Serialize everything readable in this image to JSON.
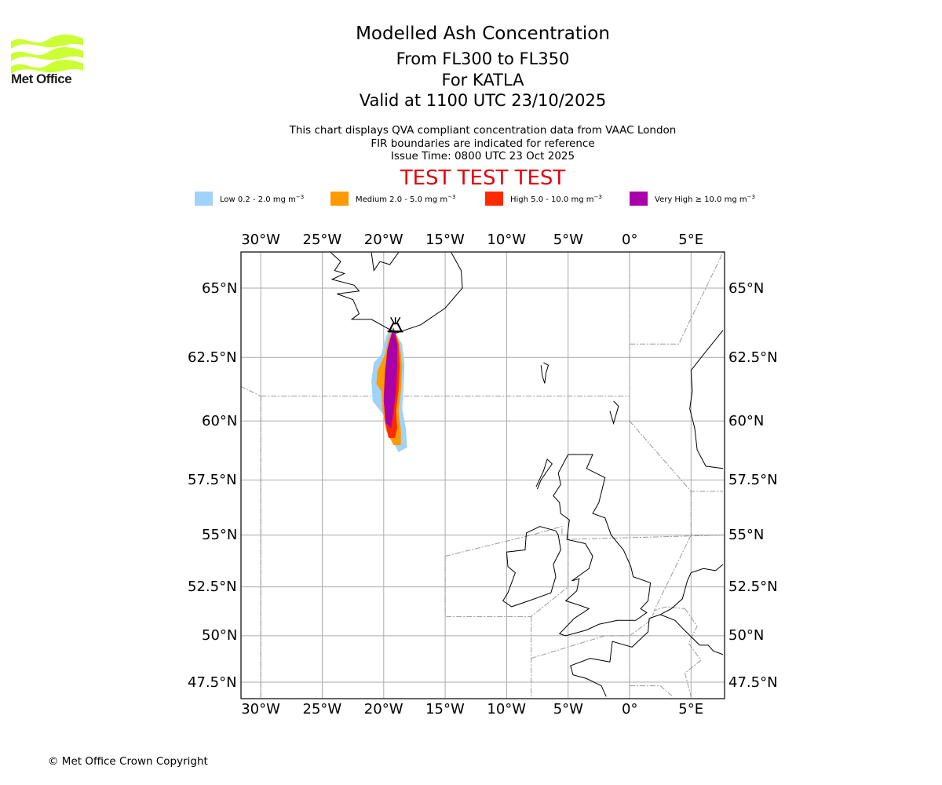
{
  "brand": {
    "logo_name": "Met Office",
    "logo_color": "#ccff33"
  },
  "header": {
    "title": "Modelled Ash Concentration",
    "flight_levels": "From FL300 to FL350",
    "volcano": "For KATLA",
    "valid_time": "Valid at 1100 UTC 23/10/2025",
    "description": "This chart displays QVA compliant concentration data from VAAC London",
    "fir_note": "FIR boundaries are indicated for reference",
    "issue_time": "Issue Time: 0800 UTC 23 Oct 2025",
    "test_banner": "TEST TEST TEST",
    "test_color": "#e3000f"
  },
  "legend": [
    {
      "label": "Low 0.2 - 2.0 mg m",
      "unit_exp": "−3",
      "color": "#a0d2fa"
    },
    {
      "label": "Medium 2.0 - 5.0 mg m",
      "unit_exp": "−3",
      "color": "#ff9a00"
    },
    {
      "label": "High 5.0 - 10.0 mg m",
      "unit_exp": "−3",
      "color": "#ff2a00"
    },
    {
      "label": "Very High  ≥  10.0 mg m",
      "unit_exp": "−3",
      "color": "#aa00aa"
    }
  ],
  "map": {
    "lon_ticks": [
      {
        "value": -30,
        "label": "30°W"
      },
      {
        "value": -25,
        "label": "25°W"
      },
      {
        "value": -20,
        "label": "20°W"
      },
      {
        "value": -15,
        "label": "15°W"
      },
      {
        "value": -10,
        "label": "10°W"
      },
      {
        "value": -5,
        "label": "5°W"
      },
      {
        "value": 0,
        "label": "0°"
      },
      {
        "value": 5,
        "label": "5°E"
      }
    ],
    "lat_ticks": [
      {
        "value": 65,
        "label": "65°N"
      },
      {
        "value": 62.5,
        "label": "62.5°N"
      },
      {
        "value": 60,
        "label": "60°N"
      },
      {
        "value": 57.5,
        "label": "57.5°N"
      },
      {
        "value": 55,
        "label": "55°N"
      },
      {
        "value": 52.5,
        "label": "52.5°N"
      },
      {
        "value": 50,
        "label": "50°N"
      },
      {
        "value": 47.5,
        "label": "47.5°N"
      }
    ],
    "extent": {
      "lon": [
        -31.7,
        7.6
      ],
      "lat": [
        46.7,
        66.2
      ]
    },
    "volcano_marker": {
      "name": "KATLA",
      "lon": -19.05,
      "lat": 63.63
    },
    "ash_plume": {
      "low": [
        [
          -19.3,
          63.6
        ],
        [
          -18.5,
          63.0
        ],
        [
          -18.3,
          62.2
        ],
        [
          -18.4,
          61.3
        ],
        [
          -18.5,
          60.5
        ],
        [
          -18.2,
          59.7
        ],
        [
          -18.1,
          58.9
        ],
        [
          -18.8,
          58.7
        ],
        [
          -19.5,
          59.4
        ],
        [
          -20.1,
          60.3
        ],
        [
          -20.9,
          60.8
        ],
        [
          -21.0,
          61.6
        ],
        [
          -20.8,
          62.3
        ],
        [
          -20.2,
          62.6
        ],
        [
          -19.8,
          63.3
        ]
      ],
      "medium": [
        [
          -19.2,
          63.6
        ],
        [
          -18.7,
          63.0
        ],
        [
          -18.5,
          62.2
        ],
        [
          -18.6,
          61.2
        ],
        [
          -18.8,
          60.4
        ],
        [
          -18.6,
          59.6
        ],
        [
          -18.6,
          59.0
        ],
        [
          -19.2,
          59.0
        ],
        [
          -19.8,
          59.6
        ],
        [
          -20.1,
          60.5
        ],
        [
          -20.2,
          61.2
        ],
        [
          -20.6,
          61.5
        ],
        [
          -20.5,
          62.0
        ],
        [
          -19.9,
          62.6
        ],
        [
          -19.6,
          63.2
        ]
      ],
      "high": [
        [
          -19.2,
          63.6
        ],
        [
          -18.8,
          63.0
        ],
        [
          -18.7,
          62.2
        ],
        [
          -18.8,
          61.2
        ],
        [
          -19.0,
          60.4
        ],
        [
          -18.9,
          59.7
        ],
        [
          -19.1,
          59.3
        ],
        [
          -19.6,
          59.3
        ],
        [
          -19.9,
          60.0
        ],
        [
          -20.0,
          61.0
        ],
        [
          -19.9,
          62.0
        ],
        [
          -19.7,
          62.8
        ],
        [
          -19.4,
          63.3
        ]
      ],
      "very_high": [
        [
          -19.2,
          63.6
        ],
        [
          -18.9,
          63.0
        ],
        [
          -18.9,
          62.2
        ],
        [
          -19.0,
          61.2
        ],
        [
          -19.2,
          60.4
        ],
        [
          -19.4,
          59.7
        ],
        [
          -19.8,
          59.9
        ],
        [
          -20.0,
          60.8
        ],
        [
          -19.9,
          61.8
        ],
        [
          -19.7,
          62.8
        ],
        [
          -19.4,
          63.3
        ]
      ]
    },
    "colors": {
      "grid": "#aaaaaa",
      "coast": "#000000",
      "fir": "#999999"
    }
  },
  "footer": {
    "copyright": "© Met Office Crown Copyright"
  }
}
